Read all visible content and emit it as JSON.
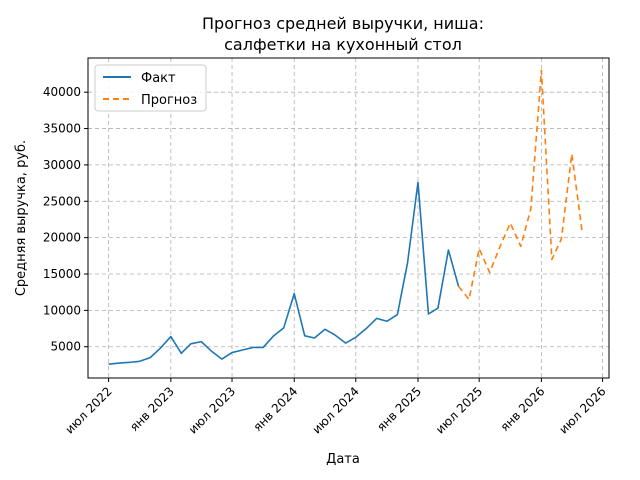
{
  "chart_data": {
    "type": "line",
    "title_line1": "Прогноз средней выручки, ниша:",
    "title_line2": "салфетки на кухонный стол",
    "xlabel": "Дата",
    "ylabel": "Средняя выручка, руб.",
    "ylim": [
      700,
      44700
    ],
    "xlim": [
      "2022-05-01",
      "2026-07-20"
    ],
    "grid": true,
    "legend_position": "top-left",
    "x_ticks": [
      {
        "date": "2022-07-01",
        "label": "июл 2022"
      },
      {
        "date": "2023-01-01",
        "label": "янв 2023"
      },
      {
        "date": "2023-07-01",
        "label": "июл 2023"
      },
      {
        "date": "2024-01-01",
        "label": "янв 2024"
      },
      {
        "date": "2024-07-01",
        "label": "июл 2024"
      },
      {
        "date": "2025-01-01",
        "label": "янв 2025"
      },
      {
        "date": "2025-07-01",
        "label": "июл 2025"
      },
      {
        "date": "2026-01-01",
        "label": "янв 2026"
      },
      {
        "date": "2026-07-01",
        "label": "июл 2026"
      }
    ],
    "y_ticks": [
      {
        "value": 5000,
        "label": "5000"
      },
      {
        "value": 10000,
        "label": "10000"
      },
      {
        "value": 15000,
        "label": "15000"
      },
      {
        "value": 20000,
        "label": "20000"
      },
      {
        "value": 25000,
        "label": "25000"
      },
      {
        "value": 30000,
        "label": "30000"
      },
      {
        "value": 35000,
        "label": "35000"
      },
      {
        "value": 40000,
        "label": "40000"
      }
    ],
    "series": [
      {
        "name": "Факт",
        "color": "#1f77b4",
        "dashed": false,
        "points": [
          [
            "2022-07-01",
            2600
          ],
          [
            "2022-08-01",
            2750
          ],
          [
            "2022-09-01",
            2850
          ],
          [
            "2022-10-01",
            3000
          ],
          [
            "2022-11-01",
            3500
          ],
          [
            "2022-12-01",
            4800
          ],
          [
            "2023-01-01",
            6400
          ],
          [
            "2023-02-01",
            4100
          ],
          [
            "2023-03-01",
            5400
          ],
          [
            "2023-04-01",
            5700
          ],
          [
            "2023-05-01",
            4400
          ],
          [
            "2023-06-01",
            3300
          ],
          [
            "2023-07-01",
            4200
          ],
          [
            "2023-08-01",
            4550
          ],
          [
            "2023-09-01",
            4900
          ],
          [
            "2023-10-01",
            4900
          ],
          [
            "2023-11-01",
            6500
          ],
          [
            "2023-12-01",
            7600
          ],
          [
            "2024-01-01",
            12300
          ],
          [
            "2024-02-01",
            6500
          ],
          [
            "2024-03-01",
            6200
          ],
          [
            "2024-04-01",
            7400
          ],
          [
            "2024-05-01",
            6600
          ],
          [
            "2024-06-01",
            5500
          ],
          [
            "2024-07-01",
            6300
          ],
          [
            "2024-08-01",
            7500
          ],
          [
            "2024-09-01",
            8900
          ],
          [
            "2024-10-01",
            8500
          ],
          [
            "2024-11-01",
            9400
          ],
          [
            "2024-12-01",
            16500
          ],
          [
            "2025-01-01",
            27600
          ],
          [
            "2025-02-01",
            9500
          ],
          [
            "2025-03-01",
            10300
          ],
          [
            "2025-04-01",
            18300
          ],
          [
            "2025-05-01",
            13300
          ]
        ]
      },
      {
        "name": "Прогноз",
        "color": "#ff7f0e",
        "dashed": true,
        "points": [
          [
            "2025-05-01",
            13300
          ],
          [
            "2025-06-01",
            11500
          ],
          [
            "2025-07-01",
            18500
          ],
          [
            "2025-08-01",
            15200
          ],
          [
            "2025-09-01",
            18800
          ],
          [
            "2025-10-01",
            22000
          ],
          [
            "2025-11-01",
            18800
          ],
          [
            "2025-12-01",
            24000
          ],
          [
            "2026-01-01",
            43000
          ],
          [
            "2026-02-01",
            17000
          ],
          [
            "2026-03-01",
            19800
          ],
          [
            "2026-04-01",
            31500
          ],
          [
            "2026-05-01",
            21000
          ]
        ]
      }
    ]
  }
}
